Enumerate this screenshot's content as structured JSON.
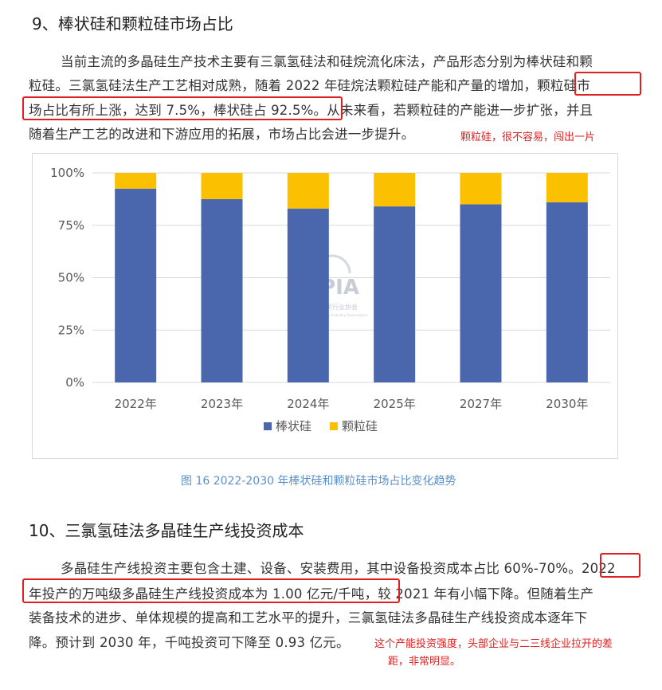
{
  "section9": {
    "heading": "9、棒状硅和颗粒硅市场占比",
    "para_lines": [
      "当前主流的多晶硅生产技术主要有三氯氢硅法和硅烷流化床法，产品形态分别为棒状硅和颗",
      "粒硅。三氯氢硅法生产工艺相对成熟，随着 2022 年硅烷法颗粒硅产能和产量的增加，颗粒硅市",
      "场占比有所上涨，达到 7.5%，棒状硅占 92.5%。从未来看，若颗粒硅的产能进一步扩张，并且",
      "随着生产工艺的改进和下游应用的拓展，市场占比会进一步提升。"
    ],
    "annotation": "颗粒硅，很不容易，闯出一片"
  },
  "watermark": {
    "logo_text": "CPIA",
    "cn_text": "中国光伏行业协会",
    "en_text": "China Photovoltaic Industry Association"
  },
  "chart_data": {
    "type": "bar",
    "stacked": true,
    "categories": [
      "2022年",
      "2023年",
      "2024年",
      "2025年",
      "2027年",
      "2030年"
    ],
    "series": [
      {
        "name": "棒状硅",
        "values": [
          92.5,
          87.5,
          83.0,
          84.0,
          85.0,
          86.0
        ],
        "color": "#4a66ac"
      },
      {
        "name": "颗粒硅",
        "values": [
          7.5,
          12.5,
          17.0,
          16.0,
          15.0,
          14.0
        ],
        "color": "#fbc000"
      }
    ],
    "yticks": [
      "0%",
      "25%",
      "50%",
      "75%",
      "100%"
    ],
    "ylim": [
      0,
      100
    ],
    "grid": true,
    "legend": "bottom",
    "caption": "图 16    2022-2030 年棒状硅和颗粒硅市场占比变化趋势"
  },
  "section10": {
    "heading": "10、三氯氢硅法多晶硅生产线投资成本",
    "para_lines": [
      "多晶硅生产线投资主要包含土建、设备、安装费用，其中设备投资成本占比 60%-70%。2022",
      "年投产的万吨级多晶硅生产线投资成本为 1.00 亿元/千吨，较 2021 年有小幅下降。但随着生产",
      "装备技术的进步、单体规模的提高和工艺水平的提升，三氯氢硅法多晶硅生产线投资成本逐年下",
      "降。预计到 2030 年，千吨投资可下降至 0.93 亿元。"
    ],
    "annotation_lines": [
      "这个产能投资强度，头部企业与二三线企业拉开的差",
      "距，非常明显。"
    ]
  }
}
